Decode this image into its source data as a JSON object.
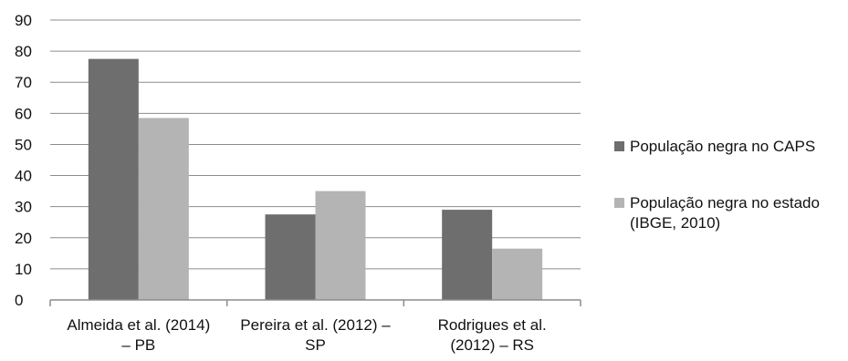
{
  "chart_data": {
    "type": "bar",
    "title": "",
    "xlabel": "",
    "ylabel": "",
    "ylim": [
      0,
      90
    ],
    "yticks": [
      0,
      10,
      20,
      30,
      40,
      50,
      60,
      70,
      80,
      90
    ],
    "grid": true,
    "legend_position": "right",
    "categories": [
      [
        "Almeida et al. (2014)",
        "– PB"
      ],
      [
        "Pereira et al. (2012) –",
        "SP"
      ],
      [
        "Rodrigues et al.",
        "(2012) – RS"
      ]
    ],
    "series": [
      {
        "name": "População negra no CAPS",
        "values": [
          77.5,
          27.5,
          29
        ],
        "color": "#6e6e6e"
      },
      {
        "name": "População negra no estado (IBGE, 2010)",
        "values": [
          58.5,
          35,
          16.5
        ],
        "color": "#b4b4b4"
      }
    ]
  }
}
